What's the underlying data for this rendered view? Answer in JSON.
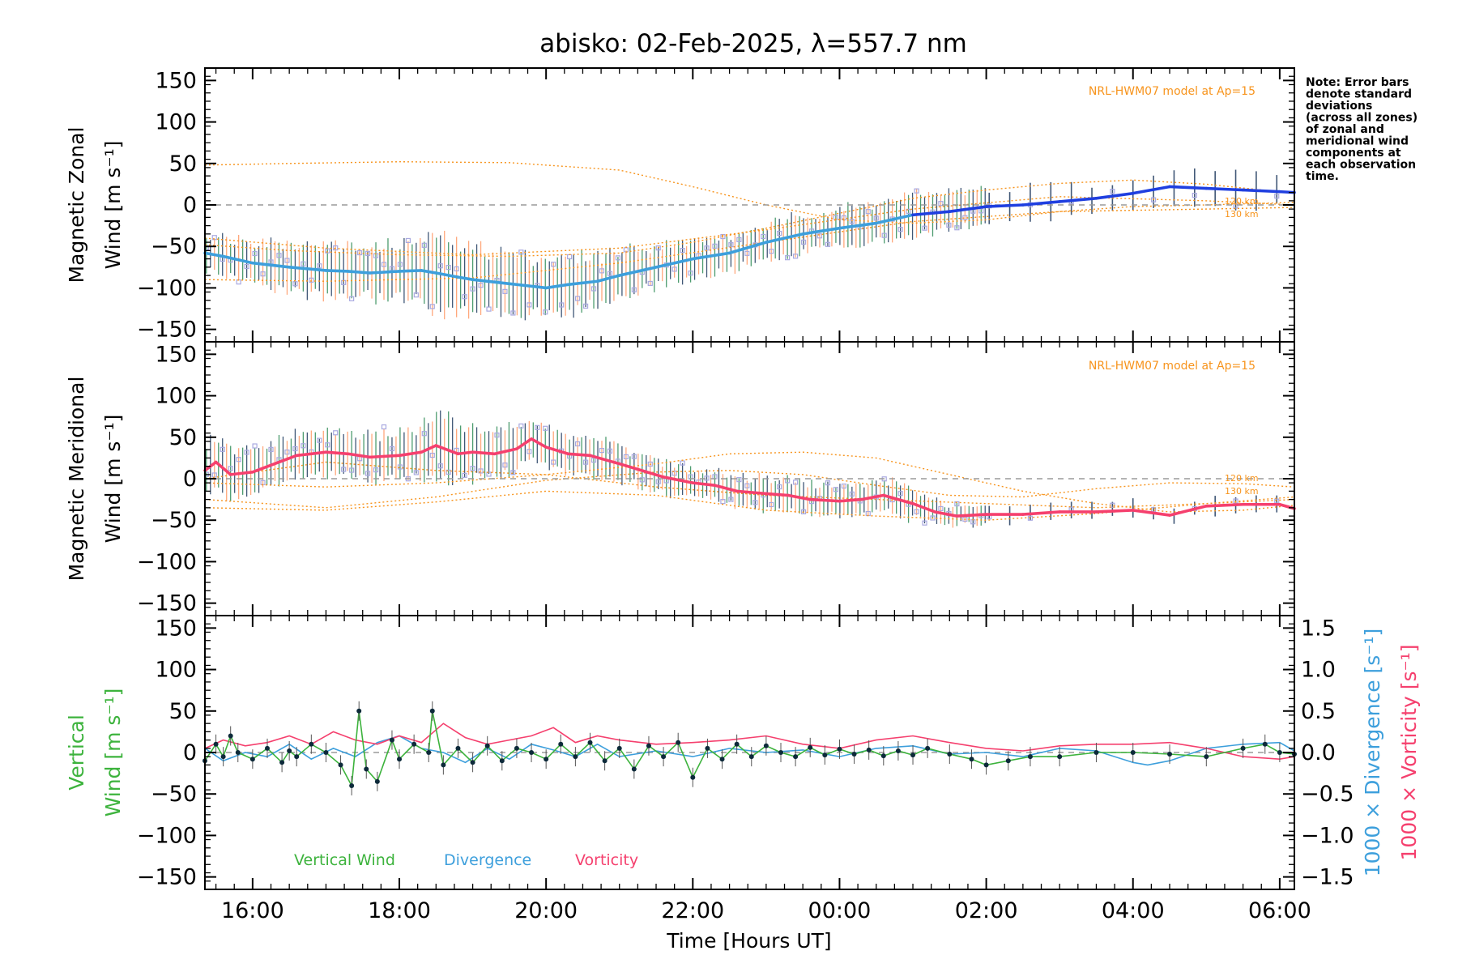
{
  "title": "abisko: 02-Feb-2025, λ=557.7 nm",
  "note": [
    "Note: Error bars",
    "denote standard",
    "deviations",
    "(across all zones)",
    "of zonal and",
    "meridional wind",
    "components at",
    "each observation",
    "time."
  ],
  "colors": {
    "zonal_mean_early": "#3d9fdc",
    "zonal_mean_late": "#1f3fe0",
    "meridional_mean": "#f5406e",
    "vertical": "#3db33d",
    "vertical_points": "#0d2a3a",
    "divergence": "#3d9fdc",
    "vorticity": "#f5406e",
    "model": "#f7941d",
    "zone_points": "#a9a9e0",
    "errorbar_a": "#2e8b57",
    "errorbar_b": "#1f3a5f",
    "errorbar_c": "#ff9966",
    "zero_line": "#9a9a9a"
  },
  "x_axis": {
    "label": "Time [Hours UT]",
    "range_hours": [
      15.35,
      30.2
    ],
    "ticks": [
      {
        "hour": 16,
        "label": "16:00"
      },
      {
        "hour": 18,
        "label": "18:00"
      },
      {
        "hour": 20,
        "label": "20:00"
      },
      {
        "hour": 22,
        "label": "22:00"
      },
      {
        "hour": 24,
        "label": "00:00"
      },
      {
        "hour": 26,
        "label": "02:00"
      },
      {
        "hour": 28,
        "label": "04:00"
      },
      {
        "hour": 30,
        "label": "06:00"
      }
    ]
  },
  "panels": {
    "zonal": {
      "ylabel_line1": "Magnetic Zonal",
      "ylabel_line2": "Wind [m s⁻¹]",
      "model_label": "NRL-HWM07 model at Ap=15",
      "km_120": "120 km",
      "km_130": "130 km"
    },
    "meridional": {
      "ylabel_line1": "Magnetic Meridional",
      "ylabel_line2": "Wind [m s⁻¹]",
      "model_label": "NRL-HWM07 model at Ap=15",
      "km_120": "120 km",
      "km_130": "130 km"
    },
    "vertical": {
      "ylabel_line1": "Vertical",
      "ylabel_line2": "Wind [m s⁻¹]",
      "right_label_div": "1000 × Divergence [s⁻¹]",
      "right_label_vort": "1000 × Vorticity [s⁻¹]",
      "legend_vertical": "Vertical Wind",
      "legend_divergence": "Divergence",
      "legend_vorticity": "Vorticity"
    }
  },
  "chart_data": [
    {
      "type": "line",
      "title": "abisko: 02-Feb-2025, λ=557.7 nm",
      "panel": "Magnetic Zonal Wind",
      "xlabel": "",
      "ylabel": "Magnetic Zonal Wind [m s⁻¹]",
      "ylim": [
        -165,
        165
      ],
      "yticks": [
        -150,
        -100,
        -50,
        0,
        50,
        100,
        150
      ],
      "series": [
        {
          "name": "",
          "kind": "mean",
          "x": [
            15.35,
            15.6,
            16.0,
            16.5,
            17.0,
            17.3,
            17.6,
            18.0,
            18.3,
            18.5,
            18.8,
            19.0,
            19.5,
            20.0,
            20.3,
            20.7,
            21.0,
            21.5,
            22.0,
            22.5,
            23.0,
            23.5,
            24.0,
            24.5,
            25.0,
            25.5,
            26.0,
            26.5,
            27.0,
            27.5,
            28.0,
            28.5,
            29.0,
            29.5,
            30.0,
            30.2
          ],
          "y": [
            -58,
            -62,
            -70,
            -75,
            -79,
            -80,
            -82,
            -80,
            -79,
            -82,
            -87,
            -90,
            -95,
            -100,
            -96,
            -92,
            -85,
            -75,
            -65,
            -58,
            -45,
            -35,
            -28,
            -22,
            -12,
            -8,
            -2,
            0,
            4,
            8,
            14,
            22,
            20,
            18,
            16,
            15
          ],
          "spread": [
            22,
            22,
            26,
            30,
            30,
            30,
            30,
            32,
            35,
            45,
            40,
            38,
            36,
            34,
            32,
            30,
            28,
            25,
            22,
            20,
            20,
            22,
            22,
            24,
            24,
            22,
            20,
            20,
            20,
            20,
            20,
            20,
            20,
            20,
            20,
            20
          ]
        },
        {
          "name": "120 km",
          "kind": "model",
          "x": [
            15.35,
            16.5,
            18.0,
            19.5,
            21.0,
            22.0,
            23.0,
            24.0,
            25.0,
            26.0,
            27.0,
            28.0,
            29.0,
            30.2
          ],
          "y": [
            48,
            50,
            52,
            51,
            42,
            22,
            0,
            -18,
            -22,
            -18,
            -8,
            -2,
            0,
            3
          ]
        },
        {
          "name": "130 km",
          "kind": "model",
          "x": [
            15.35,
            16.5,
            18.0,
            19.5,
            21.0,
            22.0,
            23.0,
            24.0,
            25.0,
            26.0,
            27.0,
            28.0,
            29.0,
            30.2
          ],
          "y": [
            -48,
            -55,
            -60,
            -62,
            -58,
            -45,
            -28,
            -10,
            8,
            18,
            26,
            30,
            25,
            14
          ]
        },
        {
          "name": "",
          "kind": "model",
          "x": [
            15.35,
            17.0,
            19.0,
            21.0,
            23.0,
            25.0,
            27.0,
            29.0,
            30.2
          ],
          "y": [
            -40,
            -52,
            -60,
            -52,
            -30,
            -5,
            10,
            5,
            0
          ]
        },
        {
          "name": "",
          "kind": "model",
          "x": [
            15.35,
            17.0,
            19.0,
            21.0,
            23.0,
            25.0,
            27.0,
            29.0,
            30.2
          ],
          "y": [
            -90,
            -92,
            -88,
            -70,
            -45,
            -20,
            -8,
            -5,
            -3
          ]
        }
      ]
    },
    {
      "type": "line",
      "panel": "Magnetic Meridional Wind",
      "xlabel": "",
      "ylabel": "Magnetic Meridional Wind [m s⁻¹]",
      "ylim": [
        -165,
        165
      ],
      "yticks": [
        -150,
        -100,
        -50,
        0,
        50,
        100,
        150
      ],
      "series": [
        {
          "name": "",
          "kind": "mean",
          "x": [
            15.35,
            15.5,
            15.7,
            16.0,
            16.3,
            16.6,
            17.0,
            17.3,
            17.6,
            18.0,
            18.3,
            18.5,
            18.8,
            19.0,
            19.3,
            19.6,
            19.8,
            20.0,
            20.3,
            20.6,
            21.0,
            21.3,
            21.6,
            22.0,
            22.3,
            22.6,
            23.0,
            23.3,
            23.6,
            24.0,
            24.3,
            24.6,
            25.0,
            25.3,
            25.6,
            26.0,
            26.5,
            27.0,
            27.5,
            28.0,
            28.5,
            29.0,
            29.5,
            30.0,
            30.2
          ],
          "y": [
            10,
            20,
            5,
            8,
            18,
            28,
            32,
            30,
            26,
            28,
            32,
            40,
            30,
            32,
            30,
            36,
            48,
            38,
            30,
            28,
            18,
            10,
            2,
            -5,
            -8,
            -15,
            -18,
            -20,
            -25,
            -27,
            -25,
            -20,
            -30,
            -40,
            -45,
            -43,
            -43,
            -40,
            -40,
            -38,
            -44,
            -33,
            -31,
            -31,
            -36
          ],
          "spread": [
            30,
            30,
            28,
            25,
            25,
            25,
            25,
            25,
            26,
            28,
            30,
            38,
            35,
            30,
            28,
            26,
            24,
            22,
            22,
            22,
            20,
            18,
            18,
            18,
            18,
            18,
            18,
            18,
            18,
            18,
            18,
            18,
            18,
            14,
            12,
            10,
            10,
            10,
            10,
            10,
            10,
            10,
            10,
            10,
            10
          ]
        },
        {
          "name": "120 km",
          "kind": "model",
          "x": [
            15.35,
            17.0,
            18.5,
            20.0,
            21.5,
            22.5,
            23.5,
            24.5,
            25.5,
            26.5,
            27.5,
            28.5,
            29.5,
            30.2
          ],
          "y": [
            -5,
            -10,
            -5,
            5,
            18,
            30,
            32,
            25,
            5,
            -15,
            -30,
            -40,
            -38,
            -32
          ]
        },
        {
          "name": "130 km",
          "kind": "model",
          "x": [
            15.35,
            17.0,
            18.5,
            20.0,
            21.5,
            22.5,
            23.5,
            24.5,
            25.5,
            26.5,
            27.5,
            28.5,
            29.5,
            30.2
          ],
          "y": [
            -25,
            -35,
            -22,
            -2,
            8,
            10,
            5,
            -8,
            -20,
            -22,
            -12,
            -5,
            -6,
            -10
          ]
        },
        {
          "name": "",
          "kind": "model",
          "x": [
            15.35,
            17.0,
            18.5,
            20.0,
            21.5,
            23.0,
            24.5,
            26.0,
            27.5,
            29.0,
            30.2
          ],
          "y": [
            0,
            20,
            10,
            5,
            -10,
            -20,
            -25,
            -30,
            -35,
            -30,
            -25
          ]
        },
        {
          "name": "",
          "kind": "model",
          "x": [
            15.35,
            17.0,
            18.5,
            20.0,
            21.5,
            23.0,
            24.5,
            26.0,
            27.5,
            29.0,
            30.2
          ],
          "y": [
            -35,
            -38,
            -28,
            -15,
            -20,
            -38,
            -45,
            -50,
            -42,
            -30,
            -22
          ]
        }
      ]
    },
    {
      "type": "line",
      "panel": "Vertical Wind",
      "xlabel": "Time [Hours UT]",
      "ylabel": "Vertical Wind [m s⁻¹]",
      "ylim": [
        -165,
        165
      ],
      "yticks": [
        -150,
        -100,
        -50,
        0,
        50,
        100,
        150
      ],
      "y2label": "1000 × Divergence [s⁻¹] / 1000 × Vorticity [s⁻¹]",
      "y2lim": [
        -1.65,
        1.65
      ],
      "y2ticks": [
        -1.5,
        -1.0,
        -0.5,
        0.0,
        0.5,
        1.0,
        1.5
      ],
      "series": [
        {
          "name": "Vertical Wind",
          "axis": "left",
          "x": [
            15.35,
            15.5,
            15.6,
            15.7,
            15.8,
            16.0,
            16.2,
            16.4,
            16.5,
            16.6,
            16.8,
            17.0,
            17.2,
            17.35,
            17.45,
            17.55,
            17.7,
            17.9,
            18.0,
            18.2,
            18.4,
            18.45,
            18.6,
            18.8,
            19.0,
            19.2,
            19.4,
            19.6,
            19.8,
            20.0,
            20.2,
            20.4,
            20.6,
            20.8,
            21.0,
            21.2,
            21.4,
            21.6,
            21.8,
            22.0,
            22.2,
            22.4,
            22.6,
            22.8,
            23.0,
            23.2,
            23.4,
            23.6,
            23.8,
            24.0,
            24.2,
            24.4,
            24.6,
            24.8,
            25.0,
            25.2,
            25.5,
            25.8,
            26.0,
            26.3,
            26.6,
            27.0,
            27.5,
            28.0,
            28.5,
            29.0,
            29.5,
            29.8,
            30.0,
            30.2
          ],
          "y": [
            -10,
            10,
            -5,
            20,
            0,
            -8,
            5,
            -12,
            2,
            -5,
            10,
            0,
            -15,
            -40,
            50,
            -20,
            -35,
            15,
            -8,
            10,
            0,
            50,
            -15,
            5,
            -12,
            8,
            -10,
            5,
            0,
            -8,
            10,
            -5,
            12,
            -10,
            5,
            -20,
            8,
            -5,
            12,
            -30,
            5,
            -8,
            10,
            -5,
            8,
            0,
            -5,
            6,
            -3,
            4,
            -2,
            3,
            -4,
            2,
            -3,
            5,
            -2,
            -8,
            -15,
            -10,
            -5,
            -5,
            0,
            0,
            -2,
            -5,
            5,
            10,
            0,
            -2
          ]
        },
        {
          "name": "Divergence",
          "axis": "right",
          "x": [
            15.35,
            15.6,
            15.9,
            16.2,
            16.5,
            16.8,
            17.1,
            17.4,
            17.7,
            18.0,
            18.3,
            18.6,
            18.9,
            19.2,
            19.5,
            19.8,
            20.1,
            20.4,
            20.7,
            21.0,
            21.5,
            22.0,
            22.5,
            23.0,
            23.5,
            24.0,
            24.5,
            25.0,
            25.5,
            26.0,
            26.5,
            27.0,
            27.5,
            28.0,
            28.2,
            28.5,
            29.0,
            29.5,
            30.0,
            30.2
          ],
          "y": [
            0.05,
            -0.1,
            0.0,
            -0.05,
            0.1,
            -0.08,
            0.05,
            -0.05,
            0.12,
            0.2,
            0.05,
            0.0,
            -0.12,
            0.05,
            -0.08,
            0.1,
            0.03,
            -0.05,
            0.1,
            -0.05,
            0.02,
            -0.05,
            0.05,
            0.0,
            0.03,
            -0.05,
            0.05,
            0.08,
            -0.02,
            0.0,
            -0.05,
            0.05,
            0.02,
            -0.12,
            -0.15,
            -0.1,
            0.05,
            0.1,
            0.12,
            0.02
          ]
        },
        {
          "name": "Vorticity",
          "axis": "right",
          "x": [
            15.35,
            15.6,
            15.9,
            16.2,
            16.5,
            16.8,
            17.1,
            17.4,
            17.7,
            18.0,
            18.3,
            18.6,
            18.9,
            19.2,
            19.5,
            19.8,
            20.1,
            20.4,
            20.7,
            21.0,
            21.5,
            22.0,
            22.5,
            23.0,
            23.5,
            24.0,
            24.5,
            25.0,
            25.5,
            26.0,
            26.5,
            27.0,
            27.5,
            28.0,
            28.5,
            29.0,
            29.5,
            30.0,
            30.2
          ],
          "y": [
            0.05,
            0.15,
            0.08,
            0.12,
            0.2,
            0.1,
            0.25,
            0.15,
            0.1,
            0.2,
            0.12,
            0.35,
            0.18,
            0.1,
            0.15,
            0.2,
            0.3,
            0.12,
            0.2,
            0.15,
            0.1,
            0.12,
            0.15,
            0.2,
            0.1,
            0.05,
            0.15,
            0.2,
            0.12,
            0.05,
            0.02,
            0.08,
            0.1,
            0.1,
            0.12,
            0.05,
            -0.05,
            -0.08,
            -0.05
          ]
        }
      ]
    }
  ]
}
